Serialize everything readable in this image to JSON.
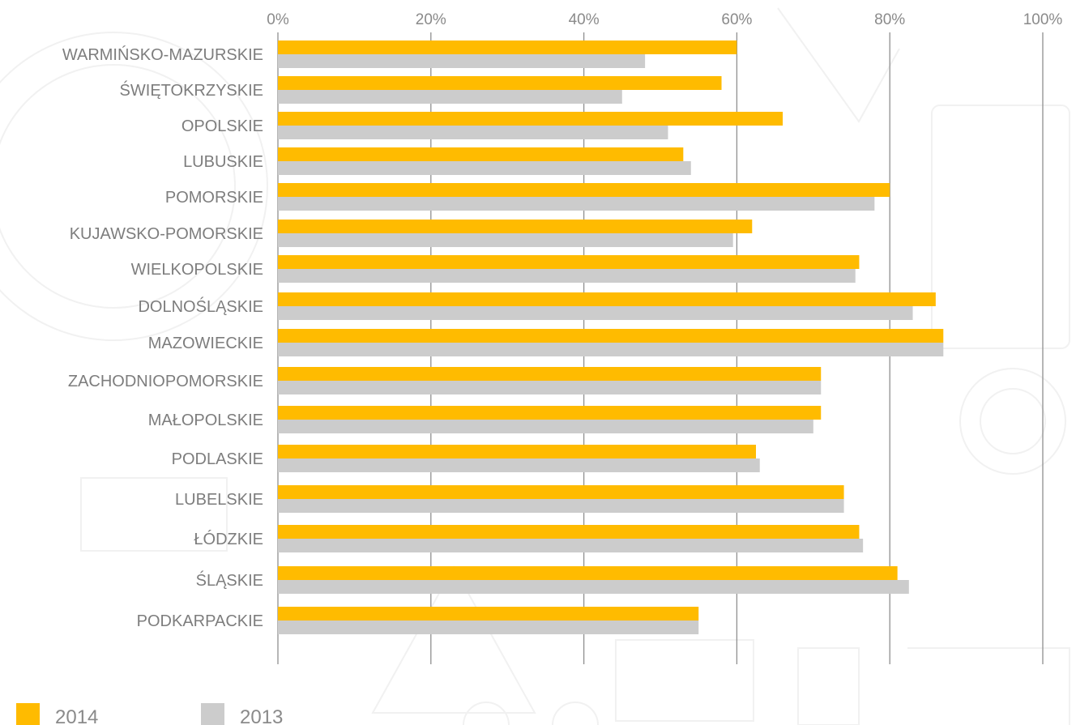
{
  "chart_data": {
    "type": "bar",
    "orientation": "horizontal",
    "categories": [
      "WARMIŃSKO-MAZURSKIE",
      "ŚWIĘTOKRZYSKIE",
      "OPOLSKIE",
      "LUBUSKIE",
      "POMORSKIE",
      "KUJAWSKO-POMORSKIE",
      "WIELKOPOLSKIE",
      "DOLNOŚLĄSKIE",
      "MAZOWIECKIE",
      "ZACHODNIOPOMORSKIE",
      "MAŁOPOLSKIE",
      "PODLASKIE",
      "LUBELSKIE",
      "ŁÓDZKIE",
      "ŚLĄSKIE",
      "PODKARPACKIE"
    ],
    "series": [
      {
        "name": "2014",
        "color": "#ffbb00",
        "values": [
          60,
          58,
          66,
          53,
          80,
          62,
          76,
          86,
          87,
          71,
          71,
          62.5,
          74,
          76,
          81,
          55
        ]
      },
      {
        "name": "2013",
        "color": "#cccccc",
        "values": [
          48,
          45,
          51,
          54,
          78,
          59.5,
          75.5,
          83,
          87,
          71,
          70,
          63,
          74,
          76.5,
          82.5,
          55
        ]
      }
    ],
    "x_ticks": [
      "0%",
      "20%",
      "40%",
      "60%",
      "80%",
      "100%"
    ],
    "xlim": [
      0,
      100
    ],
    "x_axis_position": "top",
    "grid": true,
    "legend_position": "bottom-left",
    "title": "",
    "xlabel": "",
    "ylabel": ""
  }
}
